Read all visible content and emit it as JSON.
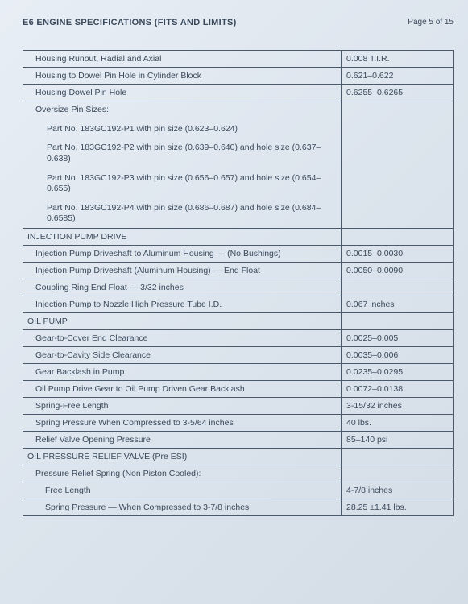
{
  "header": {
    "title": "E6 ENGINE SPECIFICATIONS (FITS AND LIMITS)",
    "page": "Page 5 of 15"
  },
  "rows": [
    {
      "label": "Housing Runout, Radial and Axial",
      "value": "0.008 T.I.R.",
      "indent": 1
    },
    {
      "label": "Housing to Dowel Pin Hole in Cylinder Block",
      "value": "0.621–0.622",
      "indent": 1
    },
    {
      "label": "Housing Dowel Pin Hole",
      "value": "0.6255–0.6265",
      "indent": 1
    }
  ],
  "oversize": {
    "header": "Oversize Pin Sizes:",
    "items": [
      "Part No. 183GC192-P1 with pin size (0.623–0.624)",
      "Part No. 183GC192-P2 with pin size (0.639–0.640) and hole size (0.637–0.638)",
      "Part No. 183GC192-P3 with pin size (0.656–0.657) and hole size (0.654–0.655)",
      "Part No. 183GC192-P4 with pin size (0.686–0.687) and hole size (0.684–0.6585)"
    ]
  },
  "sections": [
    {
      "title": "INJECTION PUMP DRIVE",
      "rows": [
        {
          "label": "Injection Pump Driveshaft to Aluminum Housing — (No Bushings)",
          "value": "0.0015–0.0030",
          "indent": 1
        },
        {
          "label": "Injection Pump Driveshaft (Aluminum Housing) — End Float",
          "value": "0.0050–0.0090",
          "indent": 1
        },
        {
          "label": "Coupling Ring End Float — 3/32 inches",
          "value": "",
          "indent": 1
        },
        {
          "label": "Injection Pump to Nozzle High Pressure Tube I.D.",
          "value": "0.067 inches",
          "indent": 1
        }
      ]
    },
    {
      "title": "OIL PUMP",
      "rows": [
        {
          "label": "Gear-to-Cover End Clearance",
          "value": "0.0025–0.005",
          "indent": 1
        },
        {
          "label": "Gear-to-Cavity Side Clearance",
          "value": "0.0035–0.006",
          "indent": 1
        },
        {
          "label": "Gear Backlash in Pump",
          "value": "0.0235–0.0295",
          "indent": 1
        },
        {
          "label": "Oil Pump Drive Gear to Oil Pump Driven Gear Backlash",
          "value": "0.0072–0.0138",
          "indent": 1
        },
        {
          "label": "Spring-Free Length",
          "value": "3-15/32 inches",
          "indent": 1
        },
        {
          "label": "Spring Pressure When Compressed to 3-5/64 inches",
          "value": "40 lbs.",
          "indent": 1
        },
        {
          "label": "Relief Valve Opening Pressure",
          "value": "85–140 psi",
          "indent": 1
        }
      ]
    },
    {
      "title": "OIL PRESSURE RELIEF VALVE (Pre ESI)",
      "rows": [
        {
          "label": "Pressure Relief Spring (Non Piston Cooled):",
          "value": "",
          "indent": 1
        },
        {
          "label": "Free Length",
          "value": "4-7/8 inches",
          "indent": 2
        },
        {
          "label": "Spring Pressure — When Compressed to 3-7/8 inches",
          "value": "28.25 ±1.41 lbs.",
          "indent": 2
        }
      ]
    }
  ]
}
